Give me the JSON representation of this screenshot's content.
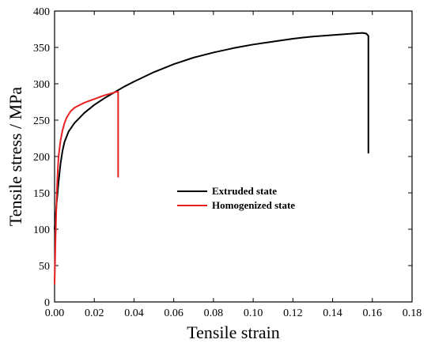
{
  "chart_data": {
    "type": "line",
    "title": "",
    "xlabel": "Tensile strain",
    "ylabel": "Tensile stress / MPa",
    "xlim": [
      0.0,
      0.18
    ],
    "ylim": [
      0,
      400
    ],
    "xticks": [
      "0.00",
      "0.02",
      "0.04",
      "0.06",
      "0.08",
      "0.10",
      "0.12",
      "0.14",
      "0.16",
      "0.18"
    ],
    "yticks": [
      "0",
      "50",
      "100",
      "150",
      "200",
      "250",
      "300",
      "350",
      "400"
    ],
    "grid": false,
    "legend": "center",
    "series": [
      {
        "name": "Extruded state",
        "color": "#000000",
        "x": [
          0.0,
          0.001,
          0.002,
          0.003,
          0.004,
          0.005,
          0.007,
          0.01,
          0.015,
          0.02,
          0.025,
          0.03,
          0.035,
          0.04,
          0.05,
          0.06,
          0.07,
          0.08,
          0.09,
          0.1,
          0.11,
          0.12,
          0.13,
          0.14,
          0.15,
          0.155,
          0.157,
          0.158,
          0.158,
          0.158
        ],
        "y": [
          100,
          135,
          165,
          190,
          208,
          220,
          234,
          246,
          260,
          271,
          280,
          288,
          296,
          303,
          316,
          327,
          336,
          343,
          349,
          354,
          358,
          362,
          365,
          367,
          369,
          370,
          369,
          366,
          280,
          205
        ]
      },
      {
        "name": "Homogenized state",
        "color": "#e8201f",
        "x": [
          0.0,
          0.0005,
          0.001,
          0.0015,
          0.002,
          0.003,
          0.004,
          0.005,
          0.006,
          0.008,
          0.01,
          0.012,
          0.015,
          0.02,
          0.025,
          0.03,
          0.031,
          0.032,
          0.032,
          0.032,
          0.032
        ],
        "y": [
          25,
          90,
          140,
          175,
          200,
          222,
          236,
          246,
          253,
          262,
          267,
          270,
          274,
          279,
          284,
          288,
          289,
          289,
          250,
          200,
          172
        ]
      }
    ]
  }
}
